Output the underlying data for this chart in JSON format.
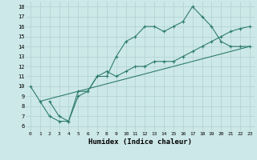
{
  "xlabel": "Humidex (Indice chaleur)",
  "background_color": "#cde8e8",
  "grid_color": "#b0d0d0",
  "line_color": "#2e7d6e",
  "xlim": [
    -0.5,
    23.5
  ],
  "ylim": [
    5.5,
    18.5
  ],
  "xticks": [
    0,
    1,
    2,
    3,
    4,
    5,
    6,
    7,
    8,
    9,
    10,
    11,
    12,
    13,
    14,
    15,
    16,
    17,
    18,
    19,
    20,
    21,
    22,
    23
  ],
  "yticks": [
    6,
    7,
    8,
    9,
    10,
    11,
    12,
    13,
    14,
    15,
    16,
    17,
    18
  ],
  "line1_x": [
    0,
    1,
    2,
    3,
    4,
    5,
    6,
    7,
    8,
    9,
    10,
    11,
    12,
    13,
    14,
    15,
    16,
    17,
    18,
    19,
    20,
    21,
    22,
    23
  ],
  "line1_y": [
    10,
    8.5,
    7,
    6.5,
    6.5,
    9.5,
    9.5,
    11,
    11,
    13,
    14.5,
    15,
    16,
    16,
    15.5,
    16,
    16.5,
    18,
    17,
    16,
    14.5,
    14,
    14,
    14
  ],
  "line2_x": [
    2,
    3,
    4,
    5,
    6,
    7,
    8,
    9,
    10,
    11,
    12,
    13,
    14,
    15,
    16,
    17,
    18,
    19,
    20,
    21,
    22,
    23
  ],
  "line2_y": [
    8.5,
    7,
    6.5,
    9,
    9.5,
    11,
    11.5,
    11,
    11.5,
    12,
    12,
    12.5,
    12.5,
    12.5,
    13,
    13.5,
    14,
    14.5,
    15,
    15.5,
    15.8,
    16
  ],
  "line3_x": [
    1,
    23
  ],
  "line3_y": [
    8.5,
    14
  ]
}
